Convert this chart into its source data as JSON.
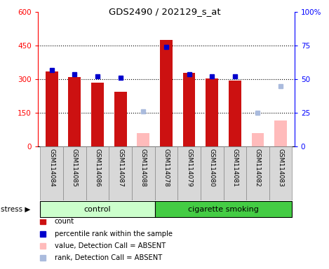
{
  "title": "GDS2490 / 202129_s_at",
  "samples": [
    "GSM114084",
    "GSM114085",
    "GSM114086",
    "GSM114087",
    "GSM114088",
    "GSM114078",
    "GSM114079",
    "GSM114080",
    "GSM114081",
    "GSM114082",
    "GSM114083"
  ],
  "counts": [
    335,
    310,
    285,
    245,
    null,
    475,
    330,
    305,
    295,
    null,
    null
  ],
  "ranks": [
    57,
    54,
    52,
    51,
    null,
    74,
    54,
    52,
    52,
    null,
    null
  ],
  "absent_counts": [
    null,
    null,
    null,
    null,
    60,
    null,
    null,
    null,
    null,
    60,
    115
  ],
  "absent_ranks": [
    null,
    null,
    null,
    null,
    26,
    null,
    null,
    null,
    null,
    25,
    45
  ],
  "bar_color_present": "#cc1111",
  "bar_color_absent": "#ffbbbb",
  "rank_color_present": "#0000cc",
  "rank_color_absent": "#aabbdd",
  "ylim_left": [
    0,
    600
  ],
  "ylim_right": [
    0,
    100
  ],
  "yticks_left": [
    0,
    150,
    300,
    450,
    600
  ],
  "yticks_right": [
    0,
    25,
    50,
    75,
    100
  ],
  "legend_items": [
    "count",
    "percentile rank within the sample",
    "value, Detection Call = ABSENT",
    "rank, Detection Call = ABSENT"
  ],
  "legend_colors": [
    "#cc1111",
    "#0000cc",
    "#ffbbbb",
    "#aabbdd"
  ],
  "control_indices": [
    0,
    1,
    2,
    3,
    4
  ],
  "smoking_indices": [
    5,
    6,
    7,
    8,
    9,
    10
  ],
  "control_color": "#ccffcc",
  "smoking_color": "#44cc44"
}
